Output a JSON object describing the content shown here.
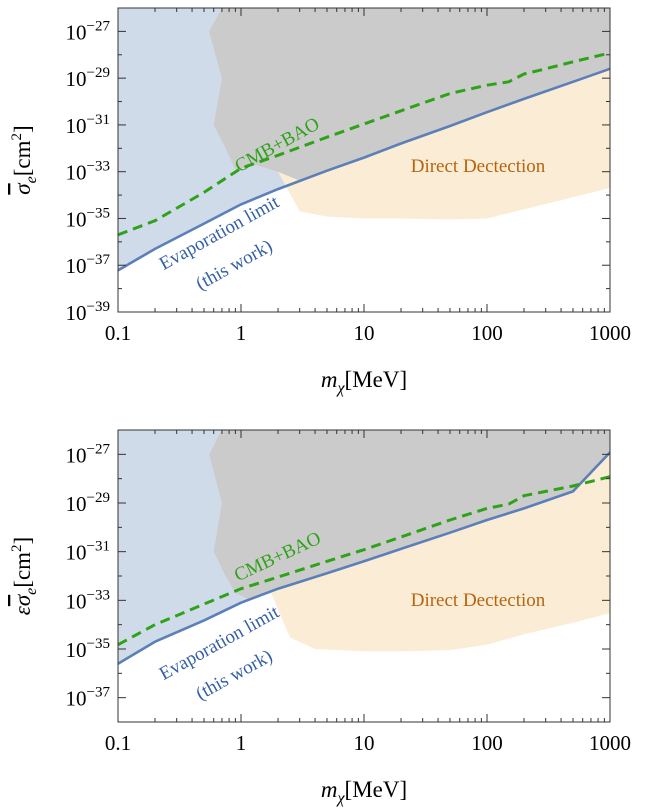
{
  "chart_data": [
    {
      "type": "area",
      "xscale": "log",
      "yscale": "log",
      "xlim": [
        0.1,
        1000
      ],
      "ylim": [
        1e-39,
        1e-26
      ],
      "xlabel": "m_χ [MeV]",
      "ylabel": "σ̄_e [cm²]",
      "x_ticks": [
        {
          "v": 0.1,
          "label": "0.1"
        },
        {
          "v": 1,
          "label": "1"
        },
        {
          "v": 10,
          "label": "10"
        },
        {
          "v": 100,
          "label": "100"
        },
        {
          "v": 1000,
          "label": "1000"
        }
      ],
      "y_ticks": [
        {
          "v": 1e-39,
          "m": "10",
          "e": "−39"
        },
        {
          "v": 1e-37,
          "m": "10",
          "e": "−37"
        },
        {
          "v": 1e-35,
          "m": "10",
          "e": "−35"
        },
        {
          "v": 1e-33,
          "m": "10",
          "e": "−33"
        },
        {
          "v": 1e-31,
          "m": "10",
          "e": "−31"
        },
        {
          "v": 1e-29,
          "m": "10",
          "e": "−29"
        },
        {
          "v": 1e-27,
          "m": "10",
          "e": "−27"
        }
      ],
      "series": [
        {
          "name": "Evaporation limit (this work)",
          "kind": "line",
          "color": "#5b7fb8",
          "dash": "solid",
          "x": [
            0.1,
            0.2,
            0.5,
            1,
            2,
            5,
            10,
            20,
            50,
            100,
            200,
            500,
            1000
          ],
          "y": [
            6e-38,
            5e-37,
            6e-36,
            4e-35,
            1.8e-34,
            1.1e-33,
            4e-33,
            1.6e-32,
            9e-32,
            3.5e-31,
            1.3e-30,
            7e-30,
            2.5e-29
          ]
        },
        {
          "name": "CMB+BAO",
          "kind": "line",
          "color": "#2ea31a",
          "dash": "dashed",
          "x": [
            0.1,
            0.2,
            0.5,
            1,
            2,
            5,
            10,
            20,
            50,
            100,
            150,
            200,
            300,
            500,
            1000
          ],
          "y": [
            2e-36,
            8e-36,
            1.3e-34,
            1.4e-33,
            5e-33,
            3e-32,
            1.1e-31,
            4e-31,
            2.2e-30,
            5e-30,
            7e-30,
            1.5e-29,
            2.5e-29,
            5e-29,
            1.2e-28
          ]
        }
      ],
      "regions": [
        {
          "name": "Evaporation excluded",
          "color": "#d0dbe9",
          "boundary": "below evaporation limit line"
        },
        {
          "name": "Direct Dectection",
          "color": "#fbecd6",
          "x": [
            2,
            3,
            5,
            10,
            20,
            50,
            100,
            200,
            500,
            1000
          ],
          "y_floor": [
            1e-33,
            2e-35,
            1.2e-35,
            1e-35,
            1e-35,
            9e-36,
            1e-35,
            2.5e-35,
            8e-35,
            2e-34
          ]
        },
        {
          "name": "Gray excluded",
          "color": "#cbcbcb",
          "x_left": [
            0.7,
            0.55,
            0.7,
            0.6,
            0.75,
            0.9,
            1.3,
            2
          ],
          "y_left": [
            1e-26,
            1e-27,
            1e-29,
            1e-31,
            1e-32,
            1.2e-33,
            2e-33,
            1e-33
          ]
        }
      ],
      "annotations": [
        {
          "text": "CMB+BAO",
          "color": "#2ea31a"
        },
        {
          "text": "Direct Dectection",
          "color": "#b8640e"
        },
        {
          "text": "Evaporation limit",
          "color": "#3560a8"
        },
        {
          "text": "(this work)",
          "color": "#3560a8"
        }
      ]
    },
    {
      "type": "area",
      "xscale": "log",
      "yscale": "log",
      "xlim": [
        0.1,
        1000
      ],
      "ylim": [
        1e-38,
        1e-26
      ],
      "xlabel": "m_χ [MeV]",
      "ylabel": "εσ̄_e [cm²]",
      "x_ticks": [
        {
          "v": 0.1,
          "label": "0.1"
        },
        {
          "v": 1,
          "label": "1"
        },
        {
          "v": 10,
          "label": "10"
        },
        {
          "v": 100,
          "label": "100"
        },
        {
          "v": 1000,
          "label": "1000"
        }
      ],
      "y_ticks": [
        {
          "v": 1e-37,
          "m": "10",
          "e": "−37"
        },
        {
          "v": 1e-35,
          "m": "10",
          "e": "−35"
        },
        {
          "v": 1e-33,
          "m": "10",
          "e": "−33"
        },
        {
          "v": 1e-31,
          "m": "10",
          "e": "−31"
        },
        {
          "v": 1e-29,
          "m": "10",
          "e": "−29"
        },
        {
          "v": 1e-27,
          "m": "10",
          "e": "−27"
        }
      ],
      "series": [
        {
          "name": "Evaporation limit (this work)",
          "kind": "line",
          "color": "#5b7fb8",
          "dash": "solid",
          "x": [
            0.1,
            0.2,
            0.5,
            1,
            2,
            5,
            10,
            20,
            50,
            100,
            200,
            500,
            1000
          ],
          "y": [
            2.5e-36,
            2e-35,
            1.5e-34,
            8e-34,
            3e-33,
            1.3e-32,
            4e-32,
            1.3e-31,
            6e-31,
            2e-30,
            6e-30,
            3e-29,
            1.2e-27
          ]
        },
        {
          "name": "CMB+BAO",
          "kind": "line",
          "color": "#2ea31a",
          "dash": "dashed",
          "x": [
            0.1,
            0.2,
            0.5,
            1,
            2,
            5,
            10,
            20,
            50,
            100,
            150,
            200,
            300,
            500,
            1000
          ],
          "y": [
            1.5e-35,
            1e-34,
            7e-34,
            3e-33,
            9e-33,
            4e-32,
            1.2e-31,
            4e-31,
            2e-30,
            6e-30,
            9e-30,
            2e-29,
            3e-29,
            5e-29,
            1.2e-28
          ]
        }
      ],
      "regions": [
        {
          "name": "Evaporation excluded",
          "color": "#d0dbe9",
          "boundary": "below evaporation limit line"
        },
        {
          "name": "Direct Dectection",
          "color": "#fbecd6",
          "x": [
            1.7,
            2.5,
            4,
            10,
            20,
            50,
            100,
            200,
            500,
            1000
          ],
          "y_floor": [
            3e-33,
            3e-35,
            1e-35,
            8e-36,
            8e-36,
            9e-36,
            1.5e-35,
            4e-35,
            1.2e-34,
            3e-34
          ]
        },
        {
          "name": "Gray excluded",
          "color": "#cbcbcb",
          "x_left": [
            0.7,
            0.55,
            0.7,
            0.6,
            0.75,
            0.9,
            1.2
          ],
          "y_left": [
            1e-26,
            1e-27,
            1e-29,
            1e-31,
            1e-32,
            2e-33,
            1e-33
          ]
        }
      ],
      "annotations": [
        {
          "text": "CMB+BAO",
          "color": "#2ea31a"
        },
        {
          "text": "Direct Dectection",
          "color": "#b8640e"
        },
        {
          "text": "Evaporation limit",
          "color": "#3560a8"
        },
        {
          "text": "(this work)",
          "color": "#3560a8"
        }
      ]
    }
  ]
}
